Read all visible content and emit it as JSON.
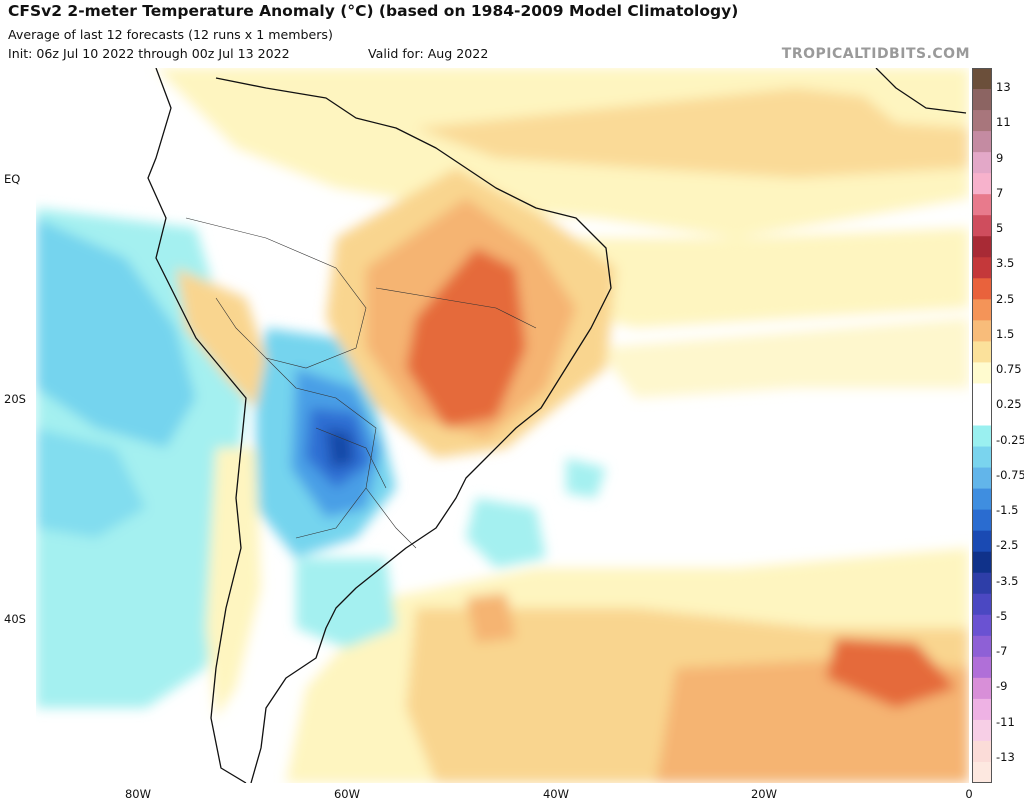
{
  "header": {
    "title": "CFSv2 2-meter Temperature Anomaly (°C) (based on 1984-2009 Model Climatology)",
    "subtitle": "Average of last 12 forecasts (12 runs x 1 members)",
    "init": "Init: 06z Jul 10 2022 through 00z Jul 13 2022",
    "valid": "Valid for: Aug 2022",
    "watermark": "TROPICALTIDBITS.COM"
  },
  "axes": {
    "lat_labels": [
      "EQ",
      "20S",
      "40S"
    ],
    "lon_labels": [
      "80W",
      "60W",
      "40W",
      "20W",
      "0"
    ]
  },
  "colorbar": {
    "labels": [
      "13",
      "11",
      "9",
      "7",
      "5",
      "3.5",
      "2.5",
      "1.5",
      "0.75",
      "0.25",
      "-0.25",
      "-0.75",
      "-1.5",
      "-2.5",
      "-3.5",
      "-5",
      "-7",
      "-9",
      "-11",
      "-13"
    ],
    "colors": [
      "#6b4f3a",
      "#8c6462",
      "#a8767c",
      "#c48ba2",
      "#e3a8c8",
      "#f7b2cc",
      "#e87a8c",
      "#cf4d5d",
      "#a82a35",
      "#c4383a",
      "#e9623c",
      "#f49458",
      "#f8bc7a",
      "#fbe19b",
      "#fffbcf",
      "#ffffff",
      "#ffffff",
      "#9af0f0",
      "#7ad4ee",
      "#62b5ea",
      "#3f8ee0",
      "#2a6cd0",
      "#1a4ab3",
      "#10328a",
      "#2e3ea8",
      "#4b48c2",
      "#6a52d2",
      "#8e60d6",
      "#b06fd8",
      "#d88fd8",
      "#eeb2e4",
      "#f7cfe6",
      "#fbdcd8",
      "#fde8e0"
    ]
  },
  "colors": {
    "ocean": "#ffffff",
    "warm1": "#fef5c0",
    "warm2": "#f9d58f",
    "warm3": "#f5b472",
    "warm4": "#f08c4f",
    "warm5": "#e56a3a",
    "cool1": "#a4f0f0",
    "cool2": "#74d4ee",
    "cool3": "#4a9fe6",
    "cool4": "#2d6ed3",
    "cool5": "#1848a8"
  }
}
